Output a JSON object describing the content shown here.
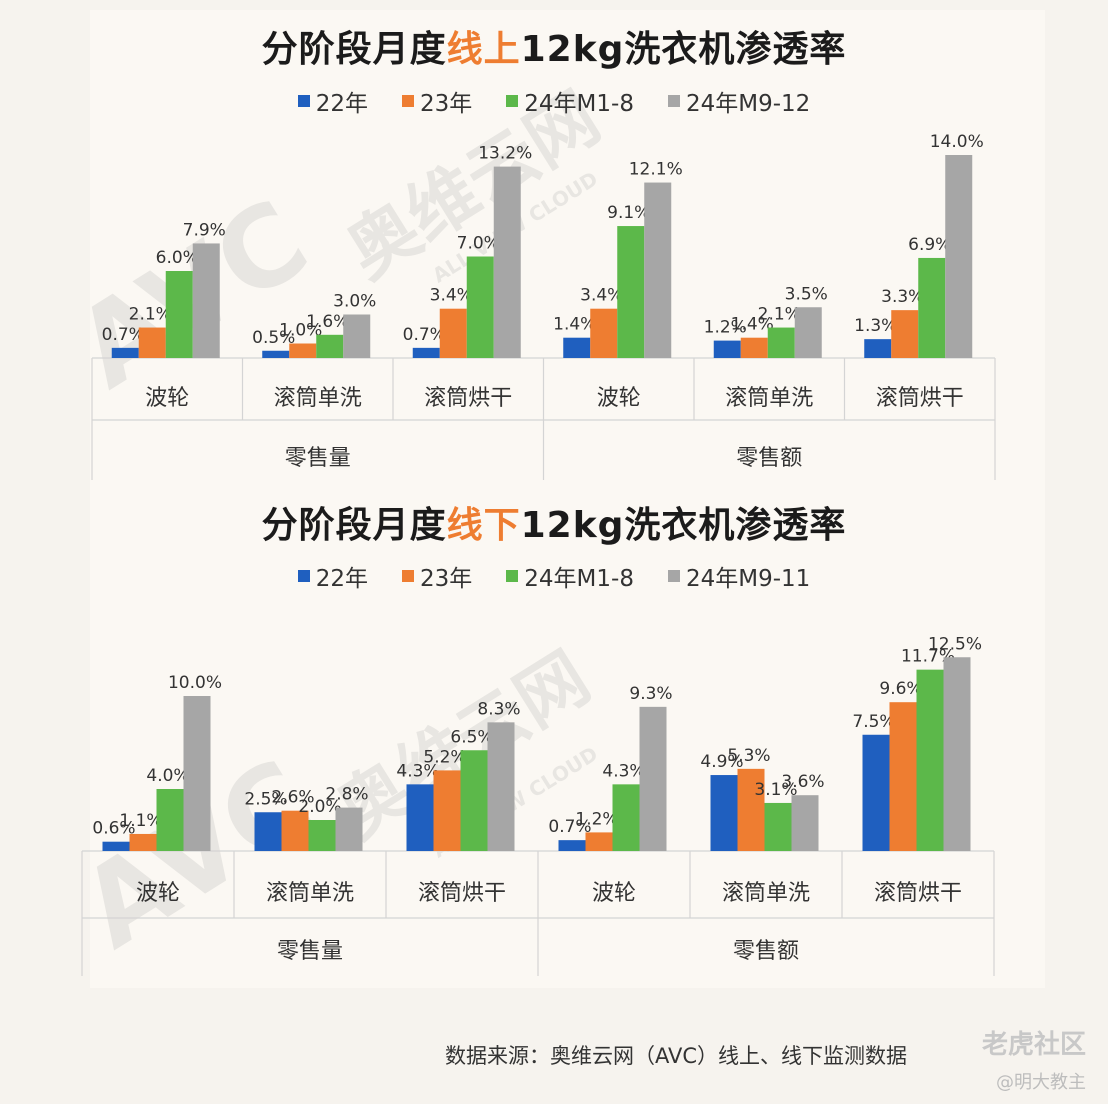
{
  "colors": {
    "22": "#1f5fbf",
    "23": "#ee7d31",
    "24a": "#5cb84a",
    "24b": "#a6a6a6",
    "highlight": "#ee7d31"
  },
  "chart_top": {
    "title_pre": "分阶段月度",
    "title_hl": "线上",
    "title_post": "12kg洗衣机渗透率",
    "legend": [
      "22年",
      "23年",
      "24年M1-8",
      "24年M9-12"
    ]
  },
  "chart_bottom": {
    "title_pre": "分阶段月度",
    "title_hl": "线下",
    "title_post": "12kg洗衣机渗透率",
    "legend": [
      "22年",
      "23年",
      "24年M1-8",
      "24年M9-11"
    ]
  },
  "watermarks": {
    "avc": "AVC",
    "cn": "奥维云网",
    "en": "ALL VIEW CLOUD"
  },
  "footer": {
    "source": "数据来源：奥维云网（AVC）线上、线下监测数据",
    "brand": "老虎社区",
    "author": "@明大教主"
  },
  "chart_data": [
    {
      "type": "bar",
      "title": "分阶段月度线上12kg洗衣机渗透率",
      "groups": [
        "零售量",
        "零售额"
      ],
      "categories": [
        "波轮",
        "滚筒单洗",
        "滚筒烘干",
        "波轮",
        "滚筒单洗",
        "滚筒烘干"
      ],
      "series": [
        {
          "name": "22年",
          "values": [
            0.7,
            0.5,
            0.7,
            1.4,
            1.2,
            1.3
          ]
        },
        {
          "name": "23年",
          "values": [
            2.1,
            1.0,
            3.4,
            3.4,
            1.4,
            3.3
          ]
        },
        {
          "name": "24年M1-8",
          "values": [
            6.0,
            1.6,
            7.0,
            9.1,
            2.1,
            6.9
          ]
        },
        {
          "name": "24年M9-12",
          "values": [
            7.9,
            3.0,
            13.2,
            12.1,
            3.5,
            14.0
          ]
        }
      ],
      "ylim": [
        0,
        14.0
      ],
      "unit": "%"
    },
    {
      "type": "bar",
      "title": "分阶段月度线下12kg洗衣机渗透率",
      "groups": [
        "零售量",
        "零售额"
      ],
      "categories": [
        "波轮",
        "滚筒单洗",
        "滚筒烘干",
        "波轮",
        "滚筒单洗",
        "滚筒烘干"
      ],
      "series": [
        {
          "name": "22年",
          "values": [
            0.6,
            2.5,
            4.3,
            0.7,
            4.9,
            7.5
          ]
        },
        {
          "name": "23年",
          "values": [
            1.1,
            2.6,
            5.2,
            1.2,
            5.3,
            9.6
          ]
        },
        {
          "name": "24年M1-8",
          "values": [
            4.0,
            2.0,
            6.5,
            4.3,
            3.1,
            11.7
          ]
        },
        {
          "name": "24年M9-11",
          "values": [
            10.0,
            2.8,
            8.3,
            9.3,
            3.6,
            12.5
          ]
        }
      ],
      "ylim": [
        0,
        12.5
      ],
      "unit": "%"
    }
  ]
}
